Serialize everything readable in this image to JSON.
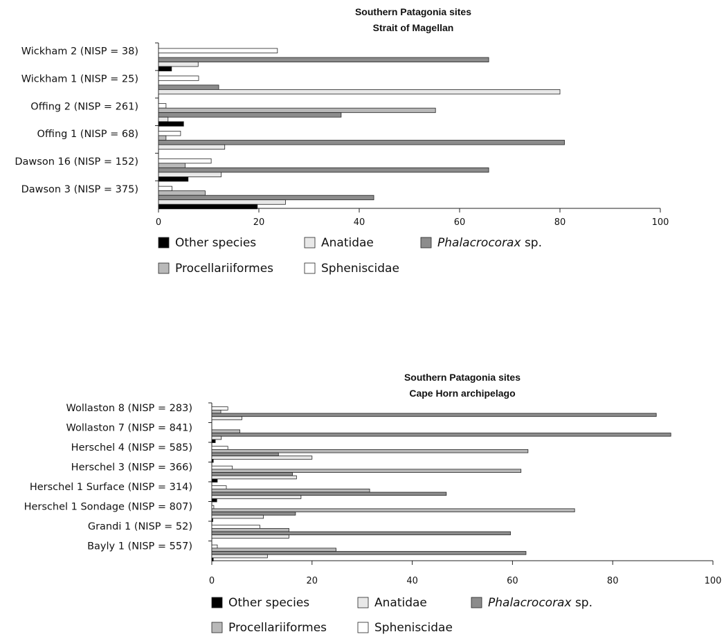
{
  "colors": {
    "Other species": "#000000",
    "Anatidae": "#e8e8e8",
    "Phalacrocorax": "#8c8c8c",
    "Procellariiformes": "#b9b9b9",
    "Spheniscidae": "#ffffff"
  },
  "chart_data": [
    {
      "type": "bar",
      "orientation": "horizontal",
      "title": [
        "Southern Patagonia sites",
        "Strait of Magellan"
      ],
      "xlim": [
        0,
        100
      ],
      "xticks": [
        0,
        20,
        40,
        60,
        80,
        100
      ],
      "xtick_labels": [
        "0",
        "20",
        "40",
        "60",
        "80",
        "100"
      ],
      "categories": [
        "Wickham 2 (NISP = 38)",
        "Wickham 1 (NISP = 25)",
        "Offing 2 (NISP = 261)",
        "Offing 1 (NISP = 68)",
        "Dawson 16 (NISP = 152)",
        "Dawson 3 (NISP = 375)"
      ],
      "series": [
        {
          "name": "Spheniscidae",
          "values": [
            23.7,
            8.0,
            1.5,
            4.4,
            10.5,
            2.7
          ]
        },
        {
          "name": "Procellariiformes",
          "values": [
            0,
            0,
            55.2,
            1.5,
            5.3,
            9.3
          ]
        },
        {
          "name": "Phalacrocorax",
          "values": [
            65.8,
            12.0,
            36.4,
            80.9,
            65.8,
            42.9
          ]
        },
        {
          "name": "Anatidae",
          "values": [
            7.9,
            80.0,
            1.9,
            13.2,
            12.5,
            25.3
          ]
        },
        {
          "name": "Other species",
          "values": [
            2.6,
            0,
            5.0,
            0,
            5.9,
            19.7
          ]
        }
      ]
    },
    {
      "type": "bar",
      "orientation": "horizontal",
      "title": [
        "Southern Patagonia sites",
        "Cape Horn archipelago"
      ],
      "xlim": [
        0,
        100
      ],
      "xticks": [
        0,
        20,
        40,
        60,
        80,
        100
      ],
      "xtick_labels": [
        "0",
        "20",
        "40",
        "60",
        "80",
        "100"
      ],
      "categories": [
        "Wollaston 8 (NISP = 283)",
        "Wollaston 7 (NISP = 841)",
        "Herschel 4 (NISP = 585)",
        "Herschel 3 (NISP = 366)",
        "Herschel 1 Surface (NISP = 314)",
        "Herschel 1 Sondage (NISP = 807)",
        "Grandi 1 (NISP = 52)",
        "Bayly 1 (NISP = 557)"
      ],
      "series": [
        {
          "name": "Spheniscidae",
          "values": [
            3.2,
            0,
            3.2,
            4.1,
            2.9,
            0.4,
            9.6,
            1.1
          ]
        },
        {
          "name": "Procellariiformes",
          "values": [
            1.8,
            5.6,
            63.1,
            61.7,
            31.5,
            72.4,
            15.4,
            24.8
          ]
        },
        {
          "name": "Phalacrocorax",
          "values": [
            88.7,
            91.6,
            13.3,
            16.1,
            46.8,
            16.7,
            59.6,
            62.7
          ]
        },
        {
          "name": "Anatidae",
          "values": [
            6.0,
            1.9,
            20.0,
            16.9,
            17.8,
            10.3,
            15.4,
            11.1
          ]
        },
        {
          "name": "Other species",
          "values": [
            0,
            0.7,
            0.3,
            1.1,
            1.0,
            0.2,
            0,
            0.3
          ]
        }
      ]
    }
  ],
  "legend": {
    "row1": [
      {
        "key": "Other species",
        "label": "Other species",
        "italic": ""
      },
      {
        "key": "Anatidae",
        "label": "Anatidae",
        "italic": ""
      },
      {
        "key": "Phalacrocorax",
        "label": " sp.",
        "italic": "Phalacrocorax"
      }
    ],
    "row2": [
      {
        "key": "Procellariiformes",
        "label": "Procellariiformes",
        "italic": ""
      },
      {
        "key": "Spheniscidae",
        "label": "Spheniscidae",
        "italic": ""
      }
    ]
  }
}
